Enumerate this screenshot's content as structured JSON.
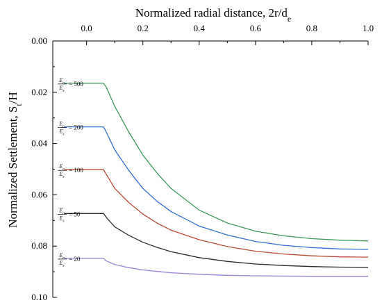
{
  "chart_data": {
    "type": "line",
    "title": "",
    "xlabel": "Normalized radial distance, 2r/d",
    "xlabel_sub": "e",
    "ylabel": "Normalized Settlement, S",
    "ylabel_sub": "t",
    "ylabel_suffix": "/H",
    "x_axis_position": "top",
    "y_axis_inverted": true,
    "xlim": [
      -0.12,
      1.0
    ],
    "ylim": [
      0.0,
      0.1
    ],
    "xticks": [
      0.0,
      0.2,
      0.4,
      0.6,
      0.8,
      1.0
    ],
    "xtick_labels": [
      "0.0",
      "0.2",
      "0.4",
      "0.6",
      "0.8",
      "1.0"
    ],
    "yticks": [
      0.0,
      0.02,
      0.04,
      0.06,
      0.08,
      0.1
    ],
    "ytick_labels": [
      "0.00",
      "0.02",
      "0.04",
      "0.06",
      "0.08",
      "0.10"
    ],
    "grid": false,
    "legend": "none",
    "series": [
      {
        "label_num": "E",
        "label_num_sub": "c",
        "label_den": "E",
        "label_den_sub": "s",
        "label_value": "= 500",
        "color": "#3a9a5a",
        "x": [
          -0.08,
          0.06,
          0.07,
          0.1,
          0.15,
          0.2,
          0.25,
          0.3,
          0.4,
          0.5,
          0.6,
          0.7,
          0.8,
          0.9,
          1.0
        ],
        "y": [
          0.0165,
          0.0165,
          0.018,
          0.0255,
          0.0355,
          0.0445,
          0.0515,
          0.0575,
          0.066,
          0.071,
          0.0742,
          0.076,
          0.0771,
          0.0777,
          0.078
        ]
      },
      {
        "label_num": "E",
        "label_num_sub": "c",
        "label_den": "E",
        "label_den_sub": "s",
        "label_value": "= 200",
        "color": "#2f6fd0",
        "x": [
          -0.08,
          0.06,
          0.07,
          0.1,
          0.15,
          0.2,
          0.25,
          0.3,
          0.4,
          0.5,
          0.6,
          0.7,
          0.8,
          0.9,
          1.0
        ],
        "y": [
          0.0335,
          0.0335,
          0.0355,
          0.0425,
          0.0505,
          0.0575,
          0.0625,
          0.0665,
          0.0722,
          0.0757,
          0.0782,
          0.0797,
          0.0806,
          0.0811,
          0.0813
        ]
      },
      {
        "label_num": "E",
        "label_num_sub": "c",
        "label_den": "E",
        "label_den_sub": "s",
        "label_value": "= 100",
        "color": "#b84a32",
        "x": [
          -0.08,
          0.06,
          0.07,
          0.1,
          0.15,
          0.2,
          0.25,
          0.3,
          0.4,
          0.5,
          0.6,
          0.7,
          0.8,
          0.9,
          1.0
        ],
        "y": [
          0.0502,
          0.0502,
          0.052,
          0.0575,
          0.063,
          0.0675,
          0.071,
          0.0738,
          0.0775,
          0.0802,
          0.082,
          0.0831,
          0.0838,
          0.0842,
          0.0843
        ]
      },
      {
        "label_num": "E",
        "label_num_sub": "c",
        "label_den": "E",
        "label_den_sub": "s",
        "label_value": "= 50",
        "color": "#2a2a2a",
        "x": [
          -0.08,
          0.06,
          0.07,
          0.1,
          0.15,
          0.2,
          0.25,
          0.3,
          0.4,
          0.5,
          0.6,
          0.7,
          0.8,
          0.9,
          1.0
        ],
        "y": [
          0.0673,
          0.0673,
          0.0688,
          0.0725,
          0.0758,
          0.0785,
          0.0805,
          0.0822,
          0.0845,
          0.086,
          0.087,
          0.0876,
          0.088,
          0.0882,
          0.0883
        ]
      },
      {
        "label_num": "E",
        "label_num_sub": "c",
        "label_den": "E",
        "label_den_sub": "s",
        "label_value": "= 20",
        "color": "#9b7fd9",
        "x": [
          -0.08,
          0.06,
          0.07,
          0.1,
          0.15,
          0.2,
          0.25,
          0.3,
          0.4,
          0.5,
          0.6,
          0.7,
          0.8,
          0.9,
          1.0
        ],
        "y": [
          0.0848,
          0.0848,
          0.0858,
          0.0872,
          0.0884,
          0.0893,
          0.0899,
          0.0904,
          0.091,
          0.0914,
          0.0916,
          0.0917,
          0.0918,
          0.0918,
          0.0918
        ]
      }
    ]
  }
}
